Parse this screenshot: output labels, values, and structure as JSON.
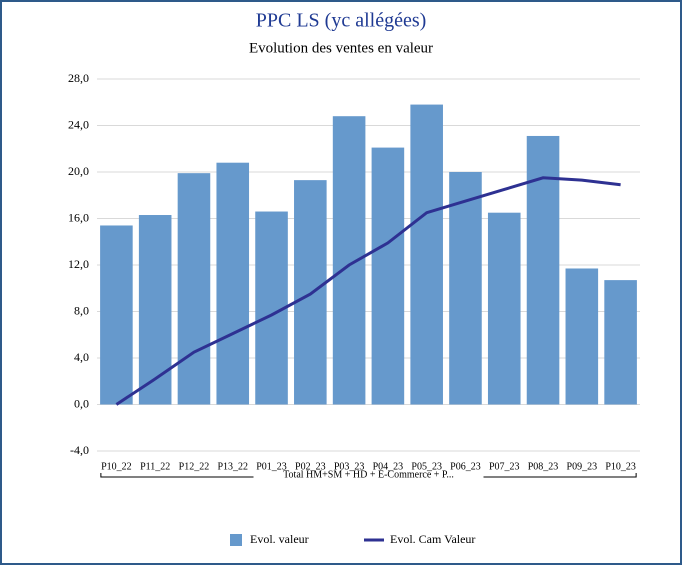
{
  "chart_data": {
    "type": "bar_line",
    "title": "PPC LS (yc allégées)",
    "subtitle": "Evolution des ventes en valeur",
    "x_group_label": "Total HM+SM + HD + E-Commerce + P...",
    "categories": [
      "P10_22",
      "P11_22",
      "P12_22",
      "P13_22",
      "P01_23",
      "P02_23",
      "P03_23",
      "P04_23",
      "P05_23",
      "P06_23",
      "P07_23",
      "P08_23",
      "P09_23",
      "P10_23"
    ],
    "series": [
      {
        "name": "Evol.  valeur",
        "type": "bar",
        "color": "#6699cc",
        "values": [
          15.4,
          16.3,
          19.9,
          20.8,
          16.6,
          19.3,
          24.8,
          22.1,
          25.8,
          20.0,
          16.5,
          23.1,
          11.7,
          10.7
        ]
      },
      {
        "name": "Evol. Cam Valeur",
        "type": "line",
        "color": "#2e3192",
        "values": [
          0,
          2.2,
          4.5,
          6.1,
          7.7,
          9.5,
          12.0,
          13.9,
          16.5,
          17.5,
          18.5,
          19.5,
          19.3,
          18.9
        ]
      }
    ],
    "ylim": [
      -4,
      28
    ],
    "yticks": [
      {
        "value": -4,
        "label": "-4,0"
      },
      {
        "value": 0,
        "label": "0,0"
      },
      {
        "value": 4,
        "label": "4,0"
      },
      {
        "value": 8,
        "label": "8,0"
      },
      {
        "value": 12,
        "label": "12,0"
      },
      {
        "value": 16,
        "label": "16,0"
      },
      {
        "value": 20,
        "label": "20,0"
      },
      {
        "value": 24,
        "label": "24,0"
      },
      {
        "value": 28,
        "label": "28,0"
      }
    ],
    "grid": true,
    "legend": "bottom"
  }
}
